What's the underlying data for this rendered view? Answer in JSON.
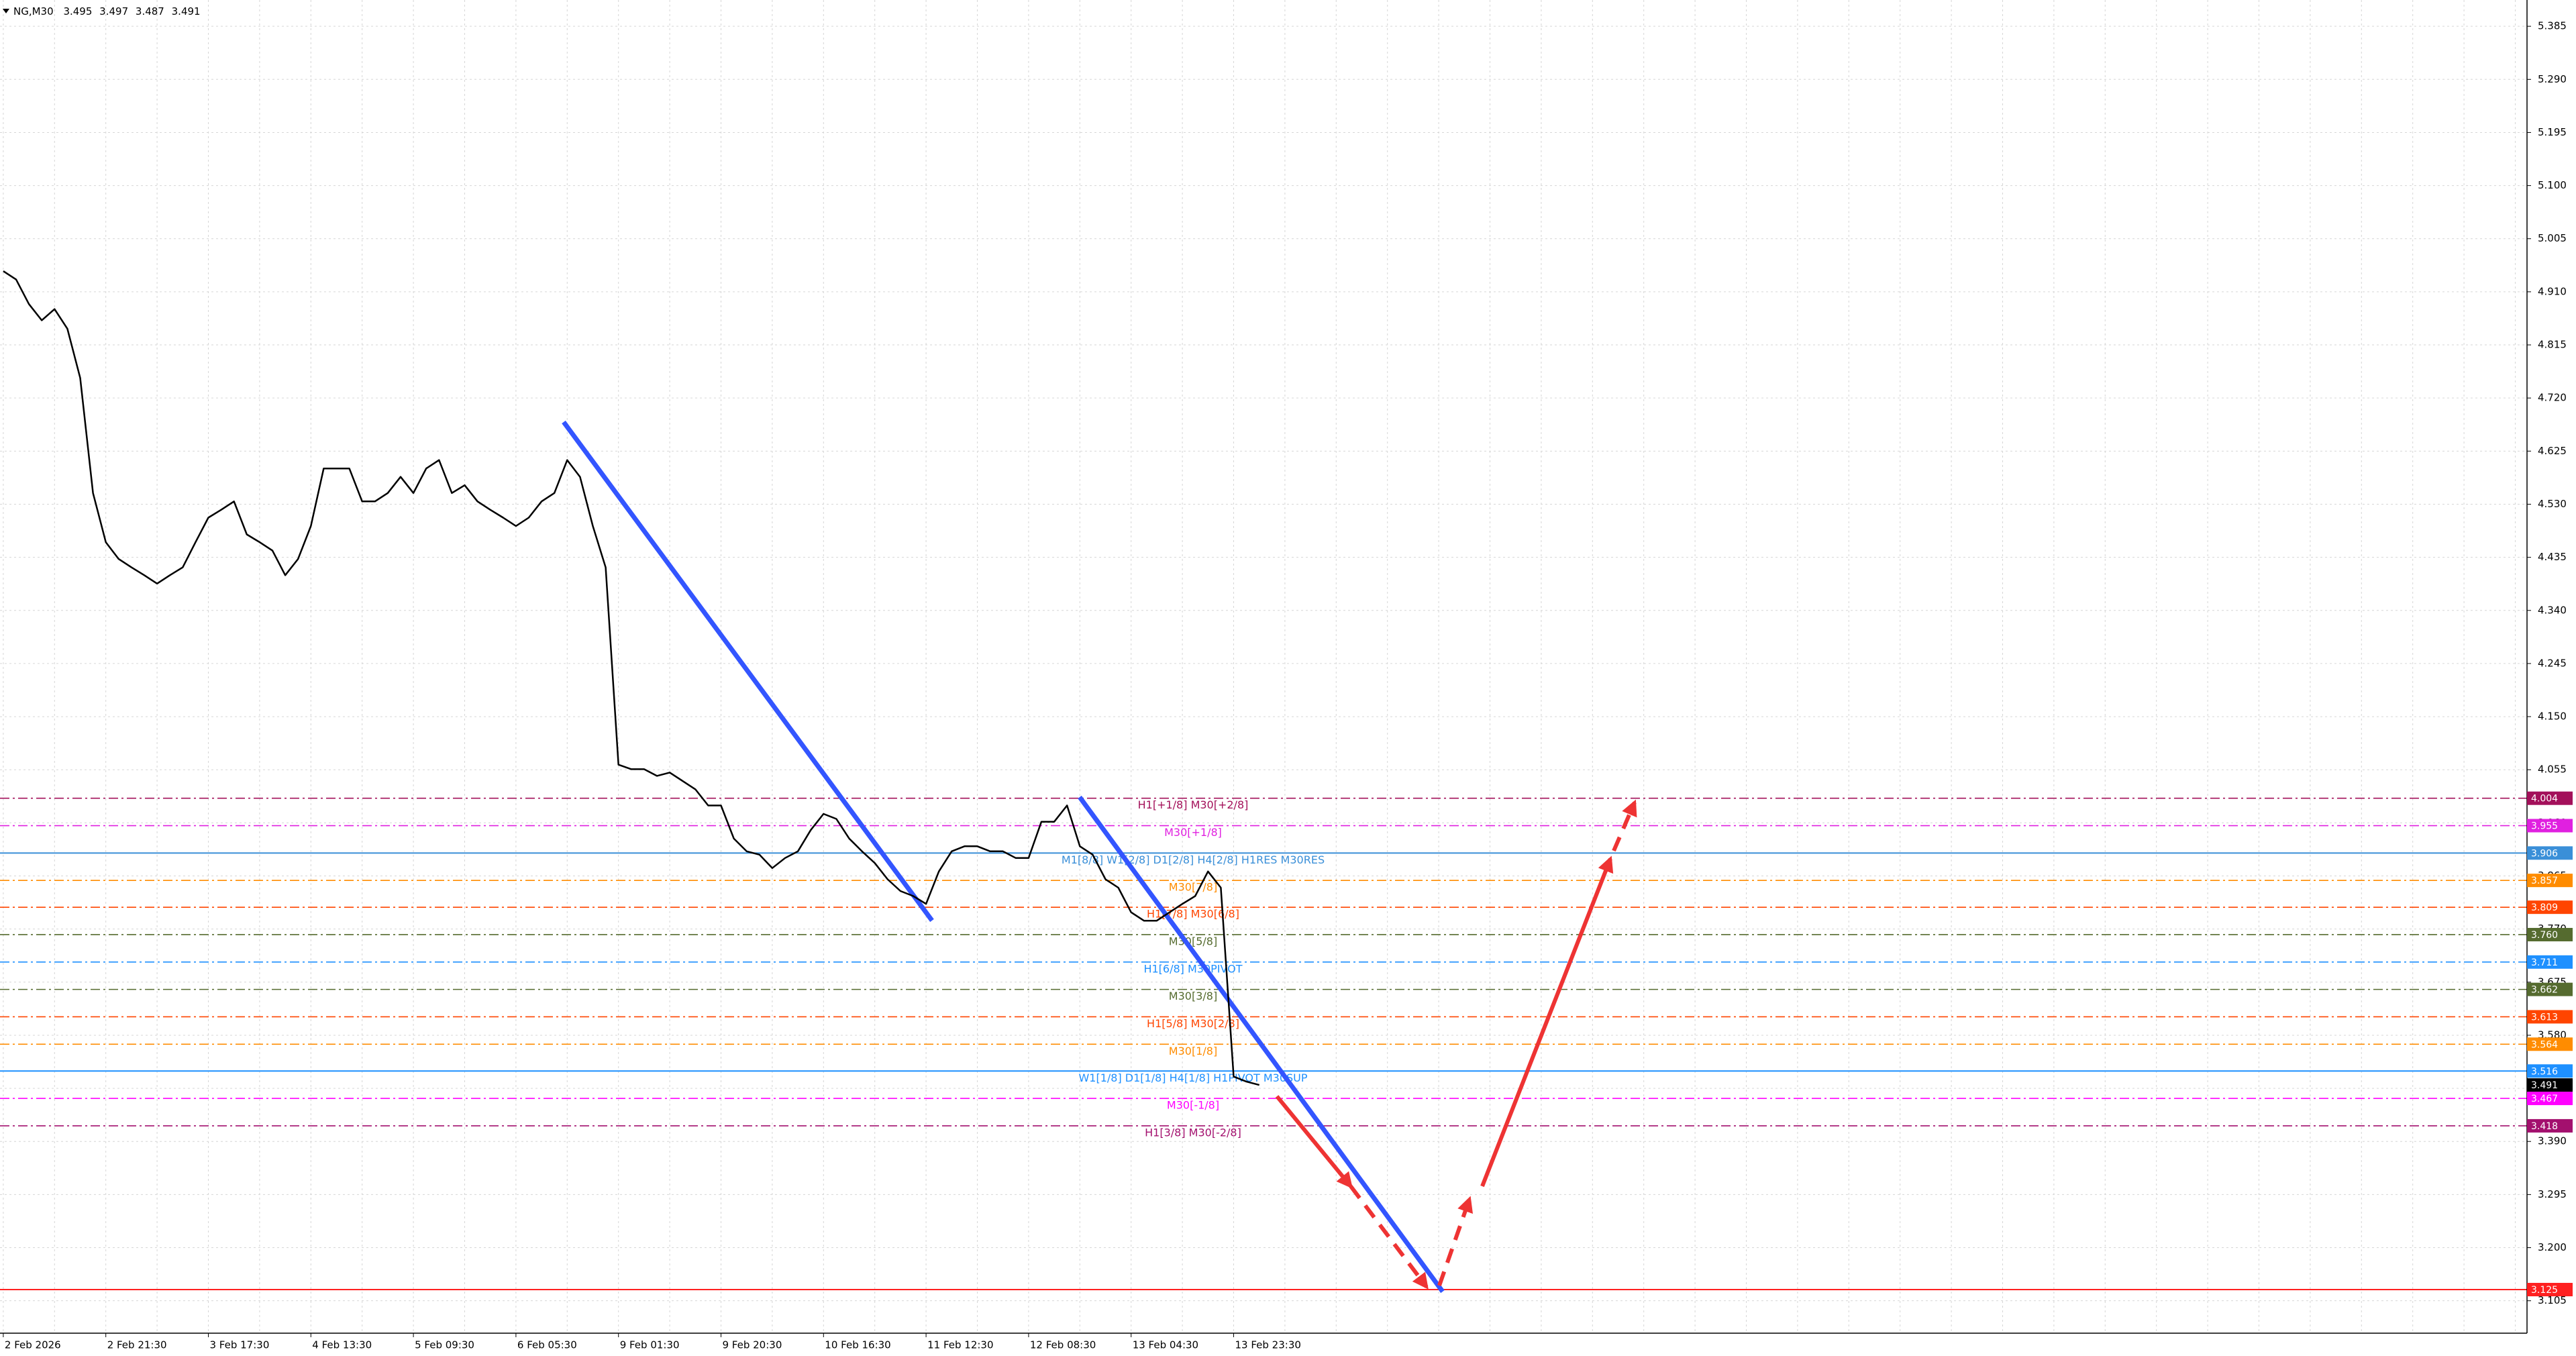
{
  "chart_data": {
    "type": "line",
    "title": "NG,M30",
    "ohlc": [
      3.495,
      3.497,
      3.487,
      3.491
    ],
    "categories": [
      "2 Feb 2026",
      null,
      null,
      null,
      null,
      null,
      null,
      null,
      "2 Feb 21:30",
      null,
      null,
      null,
      null,
      null,
      null,
      null,
      "3 Feb 17:30",
      null,
      null,
      null,
      null,
      null,
      null,
      null,
      "4 Feb 13:30",
      null,
      null,
      null,
      null,
      null,
      null,
      null,
      "5 Feb 09:30",
      null,
      null,
      null,
      null,
      null,
      null,
      null,
      "6 Feb 05:30",
      null,
      null,
      null,
      null,
      null,
      null,
      null,
      "9 Feb 01:30",
      null,
      null,
      null,
      null,
      null,
      null,
      null,
      "9 Feb 20:30",
      null,
      null,
      null,
      null,
      null,
      null,
      null,
      "10 Feb 16:30",
      null,
      null,
      null,
      null,
      null,
      null,
      null,
      "11 Feb 12:30",
      null,
      null,
      null,
      null,
      null,
      null,
      null,
      "12 Feb 08:30",
      null,
      null,
      null,
      null,
      null,
      null,
      null,
      "13 Feb 04:30",
      null,
      null,
      null,
      null,
      null,
      null,
      null,
      "13 Feb 23:30",
      null,
      null
    ],
    "series": [
      {
        "name": "NG",
        "color": "#000000",
        "values": [
          4.947,
          4.932,
          4.888,
          4.859,
          4.879,
          4.844,
          4.756,
          4.55,
          4.462,
          4.432,
          4.417,
          4.403,
          4.388,
          4.403,
          4.417,
          4.462,
          4.506,
          4.52,
          4.535,
          4.476,
          4.462,
          4.447,
          4.403,
          4.432,
          4.491,
          4.594,
          4.594,
          4.594,
          4.535,
          4.535,
          4.55,
          4.579,
          4.55,
          4.594,
          4.609,
          4.55,
          4.564,
          4.535,
          4.52,
          4.506,
          4.491,
          4.506,
          4.535,
          4.55,
          4.609,
          4.579,
          4.491,
          4.417,
          4.064,
          4.056,
          4.056,
          4.044,
          4.05,
          4.035,
          4.02,
          3.991,
          3.991,
          3.932,
          3.909,
          3.903,
          3.879,
          3.897,
          3.909,
          3.947,
          3.976,
          3.967,
          3.932,
          3.909,
          3.888,
          3.859,
          3.838,
          3.829,
          3.815,
          3.873,
          3.909,
          3.918,
          3.918,
          3.909,
          3.909,
          3.897,
          3.897,
          3.962,
          3.962,
          3.991,
          3.918,
          3.903,
          3.859,
          3.844,
          3.8,
          3.785,
          3.785,
          3.8,
          3.815,
          3.829,
          3.873,
          3.844,
          3.506,
          3.497,
          3.491
        ]
      }
    ],
    "ylim": [
      3.047,
      5.432
    ],
    "yticks": [
      5.385,
      {
        "value": 5.29,
        "label": "5.290"
      },
      5.195,
      {
        "value": 5.1,
        "label": "5.100"
      },
      5.005,
      {
        "value": 4.91,
        "label": "4.910"
      },
      4.815,
      {
        "value": 4.72,
        "label": "4.720"
      },
      4.625,
      {
        "value": 4.53,
        "label": "4.530"
      },
      4.435,
      {
        "value": 4.34,
        "label": "4.340"
      },
      4.245,
      {
        "value": 4.15,
        "label": "4.150"
      },
      4.055,
      {
        "value": 3.96,
        "label": "3.960"
      },
      3.865,
      {
        "value": 3.77,
        "label": "3.770"
      },
      3.675,
      {
        "value": 3.58,
        "label": "3.580"
      },
      3.485,
      {
        "value": 3.39,
        "label": "3.390"
      },
      3.295,
      {
        "value": 3.2,
        "label": "3.200"
      },
      3.105
    ],
    "grid": true,
    "levels": [
      {
        "value": 4.004,
        "label": "H1[+1/8] M30[+2/8]",
        "color": "#a3105a",
        "style": "dashdot"
      },
      {
        "value": 3.955,
        "label": "M30[+1/8]",
        "color": "#e020e0",
        "style": "dashdot"
      },
      {
        "value": 3.906,
        "label": "M1[8/8] W1[2/8] D1[2/8] H4[2/8] H1RES M30RES",
        "color": "#3a8fd8",
        "style": "solid"
      },
      {
        "value": 3.857,
        "label": "M30[7/8]",
        "color": "#ff8c00",
        "style": "dashdot"
      },
      {
        "value": 3.809,
        "label": "H1[7/8] M30[6/8]",
        "color": "#ff4500",
        "style": "dashdot"
      },
      {
        "value": 3.76,
        "value_label": "3.760",
        "label": "M30[5/8]",
        "color": "#556b2f",
        "style": "dashdot"
      },
      {
        "value": 3.711,
        "label": "H1[6/8] M30PIVOT",
        "color": "#1e90ff",
        "style": "dashdot"
      },
      {
        "value": 3.662,
        "label": "M30[3/8]",
        "color": "#556b2f",
        "style": "dashdot"
      },
      {
        "value": 3.613,
        "label": "H1[5/8] M30[2/8]",
        "color": "#ff4500",
        "style": "dashdot"
      },
      {
        "value": 3.564,
        "label": "M30[1/8]",
        "color": "#ff8c00",
        "style": "dashdot"
      },
      {
        "value": 3.516,
        "label": "W1[1/8] D1[1/8] H4[1/8] H1PIVOT M30SUP",
        "color": "#1e90ff",
        "style": "solid"
      },
      {
        "value": 3.467,
        "label": "M30[-1/8]",
        "color": "#ff00ff",
        "style": "dashdot"
      },
      {
        "value": 3.418,
        "label": "H1[3/8] M30[-2/8]",
        "color": "#a3106e",
        "style": "dashdot"
      },
      {
        "value": 3.125,
        "color": "#ff2020",
        "style": "solid"
      }
    ]
  }
}
